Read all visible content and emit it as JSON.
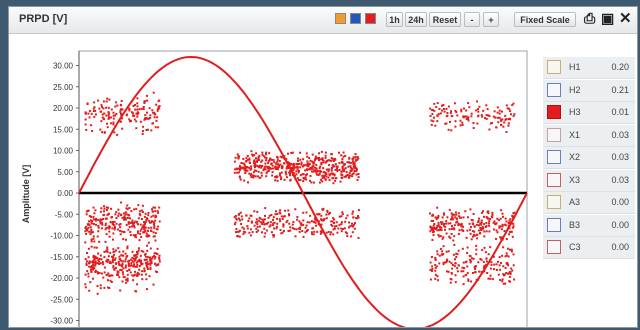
{
  "window": {
    "title": "PRPD [V]"
  },
  "toolbar": {
    "color_swatches": [
      "#f29a2e",
      "#2356b8",
      "#e21d1d"
    ],
    "btn_1h": "1h",
    "btn_24h": "24h",
    "btn_reset": "Reset",
    "btn_minus": "-",
    "btn_plus": "+",
    "btn_fixed_scale": "Fixed Scale"
  },
  "legend": [
    {
      "name": "H1",
      "value": "0.20",
      "color": "#f7f7f0",
      "border": "#c8b070"
    },
    {
      "name": "H2",
      "value": "0.21",
      "color": "#f7f7fb",
      "border": "#6a7fb5"
    },
    {
      "name": "H3",
      "value": "0.01",
      "color": "#e21d1d",
      "border": "#b51010"
    },
    {
      "name": "X1",
      "value": "0.03",
      "color": "#f7f7f7",
      "border": "#c9a0a0"
    },
    {
      "name": "X2",
      "value": "0.03",
      "color": "#f7f7fb",
      "border": "#6a7fb5"
    },
    {
      "name": "X3",
      "value": "0.03",
      "color": "#f7f7f7",
      "border": "#c46060"
    },
    {
      "name": "A3",
      "value": "0.00",
      "color": "#f7f7f0",
      "border": "#c8b070"
    },
    {
      "name": "B3",
      "value": "0.00",
      "color": "#f7f7fb",
      "border": "#6a7fb5"
    },
    {
      "name": "C3",
      "value": "0.00",
      "color": "#f7f7f7",
      "border": "#c46060"
    }
  ],
  "chart_data": {
    "type": "scatter",
    "ylabel": "Amplitude [V]",
    "ylim": [
      -32,
      32
    ],
    "yticks": [
      "30.00",
      "25.00",
      "20.00",
      "15.00",
      "10.00",
      "5.00",
      "0.00",
      "-5.00",
      "-10.00",
      "-15.00",
      "-20.00",
      "-25.00",
      "-30.00"
    ],
    "xlim": [
      0,
      360
    ],
    "sine": {
      "amplitude": 32,
      "color": "#e21d1d"
    },
    "zero_line": {
      "value": 0,
      "color": "#000000"
    },
    "point_color": "#e21d1d",
    "clusters": [
      {
        "x": [
          5,
          65
        ],
        "y": [
          13,
          24
        ],
        "count": 160
      },
      {
        "x": [
          5,
          65
        ],
        "y": [
          -12,
          -2
        ],
        "count": 260
      },
      {
        "x": [
          5,
          65
        ],
        "y": [
          -20,
          -12
        ],
        "count": 230
      },
      {
        "x": [
          5,
          60
        ],
        "y": [
          -24,
          -15
        ],
        "count": 80
      },
      {
        "x": [
          125,
          225
        ],
        "y": [
          2,
          10
        ],
        "count": 520
      },
      {
        "x": [
          125,
          225
        ],
        "y": [
          -11,
          -3
        ],
        "count": 260
      },
      {
        "x": [
          282,
          350
        ],
        "y": [
          14,
          22
        ],
        "count": 130
      },
      {
        "x": [
          282,
          350
        ],
        "y": [
          -12,
          -3
        ],
        "count": 240
      },
      {
        "x": [
          282,
          350
        ],
        "y": [
          -22,
          -12
        ],
        "count": 180
      }
    ]
  }
}
